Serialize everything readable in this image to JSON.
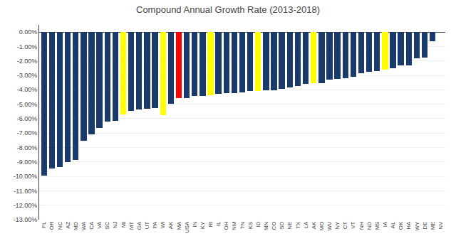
{
  "chart_data": {
    "type": "bar",
    "title": "Compound Annual Growth Rate (2013-2018)",
    "categories": [
      "FL",
      "OR",
      "NC",
      "AZ",
      "MD",
      "WA",
      "CA",
      "VA",
      "SC",
      "NJ",
      "MI",
      "MT",
      "GA",
      "UT",
      "PA",
      "WI",
      "AK",
      "MA",
      "USA",
      "IN",
      "KY",
      "RI",
      "IL",
      "OH",
      "NM",
      "TN",
      "KS",
      "ID",
      "MN",
      "CO",
      "SD",
      "NE",
      "TX",
      "LA",
      "AK",
      "MO",
      "WV",
      "NY",
      "CT",
      "VT",
      "NH",
      "ND",
      "MS",
      "IA",
      "AL",
      "OK",
      "HA",
      "WY",
      "DE",
      "ME",
      "NV"
    ],
    "values": [
      -9.95,
      -9.45,
      -9.35,
      -9.0,
      -8.85,
      -7.55,
      -7.1,
      -6.65,
      -6.2,
      -6.15,
      -5.7,
      -5.45,
      -5.35,
      -5.3,
      -5.25,
      -5.75,
      -4.95,
      -4.55,
      -4.55,
      -4.45,
      -4.45,
      -4.4,
      -4.3,
      -4.25,
      -4.25,
      -4.2,
      -4.1,
      -4.1,
      -4.05,
      -4.05,
      -3.95,
      -3.85,
      -3.75,
      -3.6,
      -3.55,
      -3.55,
      -3.3,
      -3.25,
      -3.2,
      -3.1,
      -2.85,
      -2.75,
      -2.7,
      -2.6,
      -2.5,
      -2.3,
      -2.3,
      -1.8,
      -1.75,
      -0.65,
      null
    ],
    "colors": [
      "#1a3a6b",
      "#1a3a6b",
      "#1a3a6b",
      "#1a3a6b",
      "#1a3a6b",
      "#1a3a6b",
      "#1a3a6b",
      "#1a3a6b",
      "#1a3a6b",
      "#1a3a6b",
      "yellow",
      "#1a3a6b",
      "#1a3a6b",
      "#1a3a6b",
      "#1a3a6b",
      "yellow",
      "#1a3a6b",
      "red",
      "#1a3a6b",
      "#1a3a6b",
      "#1a3a6b",
      "yellow",
      "#1a3a6b",
      "#1a3a6b",
      "#1a3a6b",
      "#1a3a6b",
      "#1a3a6b",
      "yellow",
      "#1a3a6b",
      "#1a3a6b",
      "#1a3a6b",
      "#1a3a6b",
      "#1a3a6b",
      "#1a3a6b",
      "yellow",
      "#1a3a6b",
      "#1a3a6b",
      "#1a3a6b",
      "#1a3a6b",
      "#1a3a6b",
      "#1a3a6b",
      "#1a3a6b",
      "#1a3a6b",
      "yellow",
      "#1a3a6b",
      "#1a3a6b",
      "#1a3a6b",
      "#1a3a6b",
      "#1a3a6b",
      "#1a3a6b",
      "#1a3a6b"
    ],
    "ylim": [
      -13.0,
      0.5
    ],
    "yticks": [
      {
        "value": -13.0,
        "label": "-13.00%"
      },
      {
        "value": -12.0,
        "label": "-12.00%"
      },
      {
        "value": -11.0,
        "label": "-11.00%"
      },
      {
        "value": -10.0,
        "label": "-10.00%"
      },
      {
        "value": -9.0,
        "label": "-9.00%"
      },
      {
        "value": -8.0,
        "label": "-8.00%"
      },
      {
        "value": -7.0,
        "label": "-7.00%"
      },
      {
        "value": -6.0,
        "label": "-6.00%"
      },
      {
        "value": -5.0,
        "label": "-5.00%"
      },
      {
        "value": -4.0,
        "label": "-4.00%"
      },
      {
        "value": -3.0,
        "label": "-3.00%"
      },
      {
        "value": -2.0,
        "label": "-2.00%"
      },
      {
        "value": -1.0,
        "label": "-1.00%"
      },
      {
        "value": 0.0,
        "label": "0.00%"
      }
    ],
    "grid": true
  }
}
